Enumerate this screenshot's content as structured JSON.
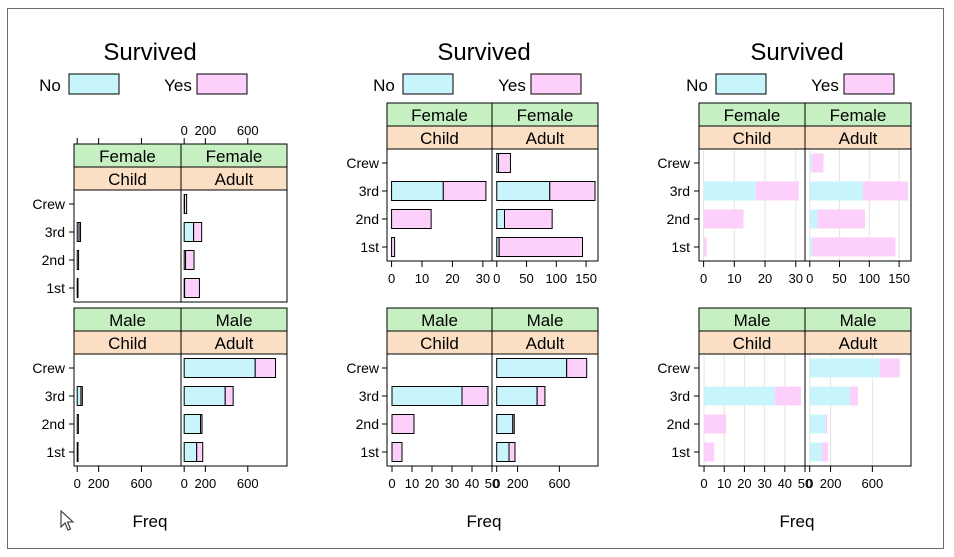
{
  "colors": {
    "no": "#c8f4fb",
    "yes": "#fcd0fa",
    "strip_sex": "#c6f0c2",
    "strip_age": "#fbdfc4",
    "grid": "#e3e3e3",
    "frame": "#000000"
  },
  "chart_data": [
    {
      "type": "bar",
      "style": "stacked horizontal, outlined",
      "title": "Survived",
      "legend": [
        "No",
        "Yes"
      ],
      "legend_position": "top",
      "xlabel": "Freq",
      "ylabel": "",
      "categories": [
        "1st",
        "2nd",
        "3rd",
        "Crew"
      ],
      "grid": false,
      "scales": "shared x",
      "panels": [
        {
          "sex": "Female",
          "age": "Child",
          "xlim": [
            -30,
            970
          ],
          "ticks": [
            0,
            200,
            600
          ],
          "ticks_position": "top",
          "series": [
            {
              "name": "No",
              "values": [
                0,
                0,
                17,
                0
              ]
            },
            {
              "name": "Yes",
              "values": [
                1,
                13,
                14,
                0
              ]
            }
          ]
        },
        {
          "sex": "Female",
          "age": "Adult",
          "xlim": [
            -30,
            970
          ],
          "ticks": [
            0,
            200,
            600
          ],
          "ticks_position": "top",
          "series": [
            {
              "name": "No",
              "values": [
                4,
                13,
                89,
                3
              ]
            },
            {
              "name": "Yes",
              "values": [
                140,
                80,
                76,
                20
              ]
            }
          ]
        },
        {
          "sex": "Male",
          "age": "Child",
          "xlim": [
            -30,
            970
          ],
          "ticks": [
            0,
            200,
            600
          ],
          "ticks_position": "bottom",
          "series": [
            {
              "name": "No",
              "values": [
                0,
                0,
                35,
                0
              ]
            },
            {
              "name": "Yes",
              "values": [
                5,
                11,
                13,
                0
              ]
            }
          ]
        },
        {
          "sex": "Male",
          "age": "Adult",
          "xlim": [
            -30,
            970
          ],
          "ticks": [
            0,
            200,
            600
          ],
          "ticks_position": "bottom",
          "series": [
            {
              "name": "No",
              "values": [
                118,
                154,
                387,
                670
              ]
            },
            {
              "name": "Yes",
              "values": [
                57,
                14,
                75,
                192
              ]
            }
          ]
        }
      ]
    },
    {
      "type": "bar",
      "style": "stacked horizontal, outlined",
      "title": "Survived",
      "legend": [
        "No",
        "Yes"
      ],
      "legend_position": "top",
      "xlabel": "Freq",
      "ylabel": "",
      "categories": [
        "1st",
        "2nd",
        "3rd",
        "Crew"
      ],
      "grid": false,
      "scales": "free x",
      "panels": [
        {
          "sex": "Female",
          "age": "Child",
          "xlim": [
            -1.5,
            33
          ],
          "ticks": [
            0,
            10,
            20,
            30
          ],
          "ticks_position": "bottom",
          "series": [
            {
              "name": "No",
              "values": [
                0,
                0,
                17,
                0
              ]
            },
            {
              "name": "Yes",
              "values": [
                1,
                13,
                14,
                0
              ]
            }
          ]
        },
        {
          "sex": "Female",
          "age": "Adult",
          "xlim": [
            -8,
            170
          ],
          "ticks": [
            0,
            50,
            100,
            150
          ],
          "ticks_position": "bottom",
          "series": [
            {
              "name": "No",
              "values": [
                4,
                13,
                89,
                3
              ]
            },
            {
              "name": "Yes",
              "values": [
                140,
                80,
                76,
                20
              ]
            }
          ]
        },
        {
          "sex": "Male",
          "age": "Child",
          "xlim": [
            -2.5,
            50
          ],
          "ticks": [
            0,
            10,
            20,
            30,
            40,
            50
          ],
          "ticks_position": "bottom",
          "series": [
            {
              "name": "No",
              "values": [
                0,
                0,
                35,
                0
              ]
            },
            {
              "name": "Yes",
              "values": [
                5,
                11,
                13,
                0
              ]
            }
          ]
        },
        {
          "sex": "Male",
          "age": "Adult",
          "xlim": [
            -45,
            970
          ],
          "ticks": [
            0,
            200,
            600
          ],
          "ticks_position": "bottom",
          "series": [
            {
              "name": "No",
              "values": [
                118,
                154,
                387,
                670
              ]
            },
            {
              "name": "Yes",
              "values": [
                57,
                14,
                75,
                192
              ]
            }
          ]
        }
      ]
    },
    {
      "type": "bar",
      "style": "stacked horizontal, borderless",
      "title": "Survived",
      "legend": [
        "No",
        "Yes"
      ],
      "legend_position": "top",
      "xlabel": "Freq",
      "ylabel": "",
      "categories": [
        "1st",
        "2nd",
        "3rd",
        "Crew"
      ],
      "grid": true,
      "scales": "free x",
      "panels": [
        {
          "sex": "Female",
          "age": "Child",
          "xlim": [
            -1.5,
            33
          ],
          "ticks": [
            0,
            10,
            20,
            30
          ],
          "ticks_position": "bottom",
          "series": [
            {
              "name": "No",
              "values": [
                0,
                0,
                17,
                0
              ]
            },
            {
              "name": "Yes",
              "values": [
                1,
                13,
                14,
                0
              ]
            }
          ]
        },
        {
          "sex": "Female",
          "age": "Adult",
          "xlim": [
            -8,
            170
          ],
          "ticks": [
            0,
            50,
            100,
            150
          ],
          "ticks_position": "bottom",
          "series": [
            {
              "name": "No",
              "values": [
                4,
                13,
                89,
                3
              ]
            },
            {
              "name": "Yes",
              "values": [
                140,
                80,
                76,
                20
              ]
            }
          ]
        },
        {
          "sex": "Male",
          "age": "Child",
          "xlim": [
            -2.5,
            50
          ],
          "ticks": [
            0,
            10,
            20,
            30,
            40,
            50
          ],
          "ticks_position": "bottom",
          "series": [
            {
              "name": "No",
              "values": [
                0,
                0,
                35,
                0
              ]
            },
            {
              "name": "Yes",
              "values": [
                5,
                11,
                13,
                0
              ]
            }
          ]
        },
        {
          "sex": "Male",
          "age": "Adult",
          "xlim": [
            -45,
            970
          ],
          "ticks": [
            0,
            200,
            600
          ],
          "ticks_position": "bottom",
          "series": [
            {
              "name": "No",
              "values": [
                118,
                154,
                387,
                670
              ]
            },
            {
              "name": "Yes",
              "values": [
                57,
                14,
                75,
                192
              ]
            }
          ]
        }
      ]
    }
  ]
}
